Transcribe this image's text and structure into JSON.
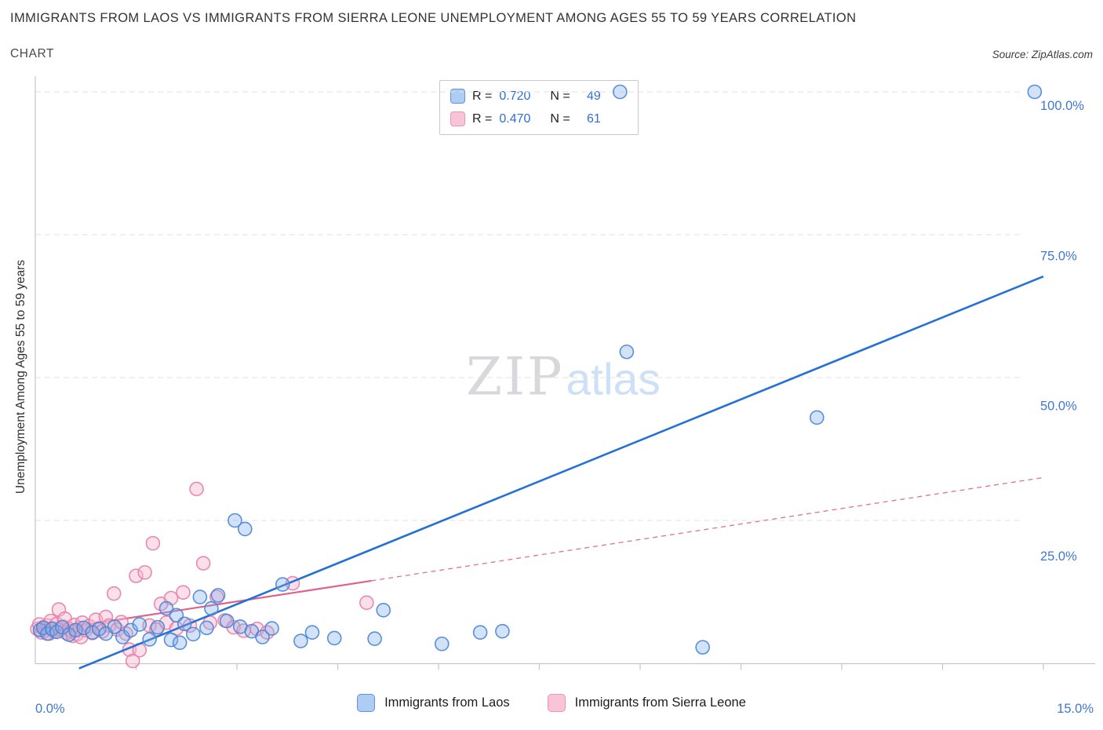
{
  "header": {
    "title": "IMMIGRANTS FROM LAOS VS IMMIGRANTS FROM SIERRA LEONE UNEMPLOYMENT AMONG AGES 55 TO 59 YEARS CORRELATION",
    "subtitle": "CHART",
    "source": "Source: ZipAtlas.com"
  },
  "watermark": {
    "zip": "ZIP",
    "atlas": "atlas"
  },
  "legend_box": {
    "rows": [
      {
        "r_label": "R =",
        "r_value": "0.720",
        "n_label": "N =",
        "n_value": "49"
      },
      {
        "r_label": "R =",
        "r_value": "0.470",
        "n_label": "N =",
        "n_value": "61"
      }
    ]
  },
  "colors": {
    "laos_fill": "#7eadea",
    "laos_stroke": "#4b84d4",
    "laos_trend": "#2471d6",
    "sierra_leone_fill": "#f6b7cf",
    "sierra_leone_stroke": "#e57ea8",
    "sierra_leone_trend": "#dd6189",
    "axis_label": "#3f78d2",
    "grid": "#e1e1e1",
    "axis": "#c6c6c6"
  },
  "chart_data": {
    "type": "scatter",
    "title": "Immigrants from Laos vs Immigrants from Sierra Leone Unemployment Among Ages 55 to 59 years Correlation",
    "xlabel": "",
    "ylabel": "Unemployment Among Ages 55 to 59 years",
    "xlim": [
      0,
      15
    ],
    "ylim": [
      0,
      100
    ],
    "x_tick_labels": {
      "min": "0.0%",
      "max": "15.0%"
    },
    "y_gridlines": [
      25,
      50,
      75,
      100
    ],
    "y_tick_labels": [
      "25.0%",
      "50.0%",
      "75.0%",
      "100.0%"
    ],
    "grid": true,
    "legend_position": "bottom",
    "series": [
      {
        "name": "Immigrants from Laos",
        "R": 0.72,
        "N": 49,
        "trend": {
          "x1": 0.65,
          "y1": -0.9,
          "x2": 15,
          "y2": 67.7,
          "style": "solid"
        },
        "points": [
          [
            0.07,
            5.8
          ],
          [
            0.12,
            6.2
          ],
          [
            0.18,
            5.2
          ],
          [
            0.25,
            6.0
          ],
          [
            0.32,
            5.5
          ],
          [
            0.4,
            6.3
          ],
          [
            0.5,
            5.0
          ],
          [
            0.6,
            5.8
          ],
          [
            0.72,
            6.2
          ],
          [
            0.85,
            5.4
          ],
          [
            0.95,
            6.0
          ],
          [
            1.05,
            5.2
          ],
          [
            1.18,
            6.4
          ],
          [
            1.3,
            4.6
          ],
          [
            1.42,
            5.8
          ],
          [
            1.55,
            6.8
          ],
          [
            1.7,
            4.2
          ],
          [
            1.82,
            6.3
          ],
          [
            1.95,
            9.6
          ],
          [
            2.02,
            4.1
          ],
          [
            2.1,
            8.4
          ],
          [
            2.15,
            3.6
          ],
          [
            2.22,
            6.9
          ],
          [
            2.35,
            5.1
          ],
          [
            2.45,
            11.6
          ],
          [
            2.55,
            6.2
          ],
          [
            2.62,
            9.6
          ],
          [
            2.72,
            11.9
          ],
          [
            2.85,
            7.4
          ],
          [
            2.97,
            25.0
          ],
          [
            3.05,
            6.4
          ],
          [
            3.12,
            23.5
          ],
          [
            3.22,
            5.6
          ],
          [
            3.38,
            4.6
          ],
          [
            3.52,
            6.1
          ],
          [
            3.68,
            13.8
          ],
          [
            3.95,
            3.9
          ],
          [
            4.12,
            5.4
          ],
          [
            4.45,
            4.4
          ],
          [
            5.05,
            4.3
          ],
          [
            5.18,
            9.3
          ],
          [
            6.05,
            3.4
          ],
          [
            6.62,
            5.4
          ],
          [
            6.95,
            5.6
          ],
          [
            8.7,
            100.0
          ],
          [
            8.8,
            54.5
          ],
          [
            9.93,
            2.8
          ],
          [
            11.63,
            43.0
          ],
          [
            14.87,
            100.0
          ]
        ]
      },
      {
        "name": "Immigrants from Sierra Leone",
        "R": 0.47,
        "N": 61,
        "trend": {
          "x1": 0,
          "y1": 5.4,
          "x2": 15,
          "y2": 32.5,
          "solid_until_x": 5.0,
          "style": "solid-then-dashed"
        },
        "points": [
          [
            0.03,
            6.0
          ],
          [
            0.06,
            6.8
          ],
          [
            0.09,
            5.4
          ],
          [
            0.12,
            6.3
          ],
          [
            0.15,
            5.7
          ],
          [
            0.18,
            6.6
          ],
          [
            0.21,
            5.2
          ],
          [
            0.23,
            7.4
          ],
          [
            0.25,
            6.1
          ],
          [
            0.28,
            5.6
          ],
          [
            0.32,
            6.9
          ],
          [
            0.35,
            9.4
          ],
          [
            0.38,
            5.9
          ],
          [
            0.42,
            6.4
          ],
          [
            0.44,
            7.8
          ],
          [
            0.46,
            5.3
          ],
          [
            0.5,
            6.0
          ],
          [
            0.54,
            5.6
          ],
          [
            0.56,
            4.8
          ],
          [
            0.58,
            6.7
          ],
          [
            0.62,
            5.1
          ],
          [
            0.66,
            6.2
          ],
          [
            0.68,
            4.6
          ],
          [
            0.7,
            7.1
          ],
          [
            0.75,
            5.8
          ],
          [
            0.8,
            6.5
          ],
          [
            0.85,
            5.3
          ],
          [
            0.9,
            7.6
          ],
          [
            0.95,
            6.1
          ],
          [
            1.0,
            5.6
          ],
          [
            1.05,
            8.1
          ],
          [
            1.1,
            6.6
          ],
          [
            1.17,
            12.2
          ],
          [
            1.22,
            5.9
          ],
          [
            1.28,
            7.2
          ],
          [
            1.35,
            5.2
          ],
          [
            1.4,
            2.4
          ],
          [
            1.45,
            0.4
          ],
          [
            1.5,
            15.3
          ],
          [
            1.55,
            2.3
          ],
          [
            1.63,
            15.9
          ],
          [
            1.7,
            6.6
          ],
          [
            1.75,
            21.0
          ],
          [
            1.8,
            5.9
          ],
          [
            1.87,
            10.4
          ],
          [
            1.95,
            7.1
          ],
          [
            2.02,
            11.4
          ],
          [
            2.1,
            6.1
          ],
          [
            2.2,
            12.4
          ],
          [
            2.3,
            6.6
          ],
          [
            2.4,
            30.5
          ],
          [
            2.5,
            17.5
          ],
          [
            2.6,
            7.1
          ],
          [
            2.7,
            11.6
          ],
          [
            2.82,
            7.5
          ],
          [
            2.95,
            6.3
          ],
          [
            3.1,
            5.7
          ],
          [
            3.3,
            6.0
          ],
          [
            3.45,
            5.4
          ],
          [
            3.83,
            14.0
          ],
          [
            4.93,
            10.6
          ]
        ]
      }
    ]
  }
}
